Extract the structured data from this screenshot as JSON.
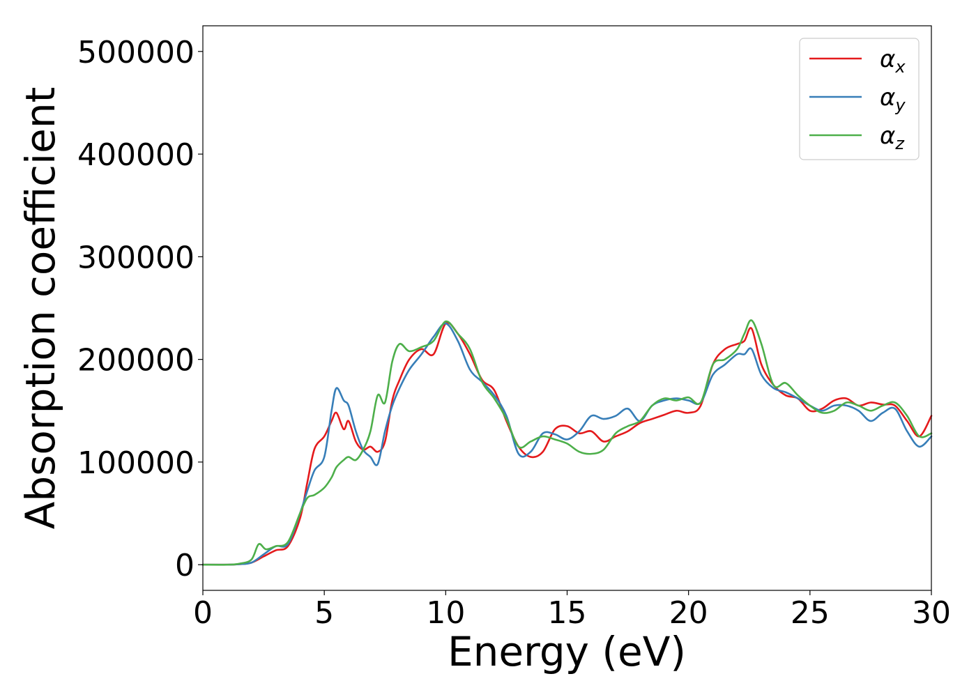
{
  "chart_data": {
    "type": "line",
    "title": "",
    "xlabel": "Energy (eV)",
    "ylabel": "Absorption coefficient",
    "xlim": [
      0,
      30
    ],
    "ylim": [
      -25000,
      525000
    ],
    "xticks": [
      0,
      5,
      10,
      15,
      20,
      25,
      30
    ],
    "yticks": [
      0,
      100000,
      200000,
      300000,
      400000,
      500000
    ],
    "grid": false,
    "legend": "top-right",
    "series": [
      {
        "name": "α",
        "subscript": "x",
        "color": "#e41a1c",
        "x": [
          0,
          1,
          1.5,
          2,
          2.5,
          3,
          3.5,
          4,
          4.3,
          4.6,
          5,
          5.3,
          5.5,
          5.8,
          6,
          6.3,
          6.6,
          6.9,
          7.2,
          7.5,
          7.8,
          8.1,
          8.5,
          9,
          9.5,
          10,
          10.5,
          11,
          11.5,
          12,
          12.5,
          13,
          13.5,
          14,
          14.5,
          15,
          15.5,
          16,
          16.5,
          17,
          17.5,
          18,
          18.5,
          19,
          19.5,
          20,
          20.5,
          21,
          21.5,
          22,
          22.3,
          22.6,
          23,
          23.5,
          24,
          24.5,
          25,
          25.5,
          26,
          26.5,
          27,
          27.5,
          28,
          28.5,
          29,
          29.5,
          30
        ],
        "y": [
          0,
          0,
          500,
          2000,
          8000,
          14000,
          18000,
          45000,
          80000,
          113000,
          125000,
          140000,
          148000,
          132000,
          140000,
          120000,
          112000,
          115000,
          110000,
          120000,
          160000,
          180000,
          200000,
          210000,
          205000,
          235000,
          225000,
          205000,
          180000,
          170000,
          140000,
          115000,
          105000,
          110000,
          132000,
          135000,
          128000,
          130000,
          120000,
          125000,
          130000,
          138000,
          142000,
          146000,
          150000,
          148000,
          155000,
          195000,
          210000,
          215000,
          218000,
          230000,
          195000,
          175000,
          165000,
          162000,
          150000,
          152000,
          160000,
          162000,
          155000,
          158000,
          156000,
          155000,
          140000,
          125000,
          145000
        ]
      },
      {
        "name": "α",
        "subscript": "y",
        "color": "#377eb8",
        "x": [
          0,
          1,
          1.5,
          2,
          2.5,
          3,
          3.5,
          4,
          4.3,
          4.6,
          5,
          5.3,
          5.5,
          5.8,
          6,
          6.3,
          6.6,
          6.9,
          7.2,
          7.5,
          7.8,
          8.1,
          8.5,
          9,
          9.5,
          10,
          10.5,
          11,
          11.5,
          12,
          12.5,
          13,
          13.5,
          14,
          14.5,
          15,
          15.5,
          16,
          16.5,
          17,
          17.5,
          18,
          18.5,
          19,
          19.5,
          20,
          20.5,
          21,
          21.5,
          22,
          22.3,
          22.6,
          23,
          23.5,
          24,
          24.5,
          25,
          25.5,
          26,
          26.5,
          27,
          27.5,
          28,
          28.5,
          29,
          29.5,
          30
        ],
        "y": [
          0,
          0,
          500,
          2000,
          10000,
          18000,
          20000,
          50000,
          72000,
          92000,
          105000,
          150000,
          172000,
          160000,
          155000,
          130000,
          112000,
          105000,
          98000,
          130000,
          155000,
          172000,
          190000,
          205000,
          222000,
          235000,
          218000,
          190000,
          178000,
          165000,
          145000,
          108000,
          110000,
          128000,
          127000,
          122000,
          130000,
          145000,
          142000,
          145000,
          152000,
          140000,
          155000,
          160000,
          162000,
          160000,
          158000,
          185000,
          195000,
          205000,
          205000,
          210000,
          185000,
          172000,
          168000,
          162000,
          155000,
          150000,
          155000,
          155000,
          150000,
          140000,
          148000,
          152000,
          130000,
          115000,
          125000
        ]
      },
      {
        "name": "α",
        "subscript": "z",
        "color": "#4daf4a",
        "x": [
          0,
          1,
          1.5,
          2,
          2.3,
          2.6,
          3,
          3.5,
          4,
          4.3,
          4.6,
          5,
          5.3,
          5.5,
          5.8,
          6,
          6.3,
          6.6,
          6.9,
          7.2,
          7.5,
          7.8,
          8.1,
          8.5,
          9,
          9.5,
          10,
          10.5,
          11,
          11.5,
          12,
          12.5,
          13,
          13.5,
          14,
          14.5,
          15,
          15.5,
          16,
          16.5,
          17,
          17.5,
          18,
          18.5,
          19,
          19.5,
          20,
          20.5,
          21,
          21.5,
          22,
          22.3,
          22.6,
          23,
          23.5,
          24,
          24.5,
          25,
          25.5,
          26,
          26.5,
          27,
          27.5,
          28,
          28.5,
          29,
          29.5,
          30
        ],
        "y": [
          0,
          0,
          1000,
          5000,
          20000,
          15000,
          18000,
          22000,
          50000,
          65000,
          68000,
          75000,
          85000,
          95000,
          102000,
          105000,
          102000,
          112000,
          130000,
          165000,
          158000,
          198000,
          215000,
          208000,
          212000,
          218000,
          237000,
          225000,
          210000,
          178000,
          162000,
          142000,
          115000,
          120000,
          125000,
          122000,
          118000,
          110000,
          108000,
          112000,
          128000,
          135000,
          140000,
          155000,
          162000,
          160000,
          163000,
          158000,
          195000,
          200000,
          210000,
          225000,
          238000,
          215000,
          175000,
          177000,
          165000,
          155000,
          148000,
          150000,
          158000,
          155000,
          150000,
          155000,
          158000,
          145000,
          125000,
          128000
        ]
      }
    ]
  }
}
